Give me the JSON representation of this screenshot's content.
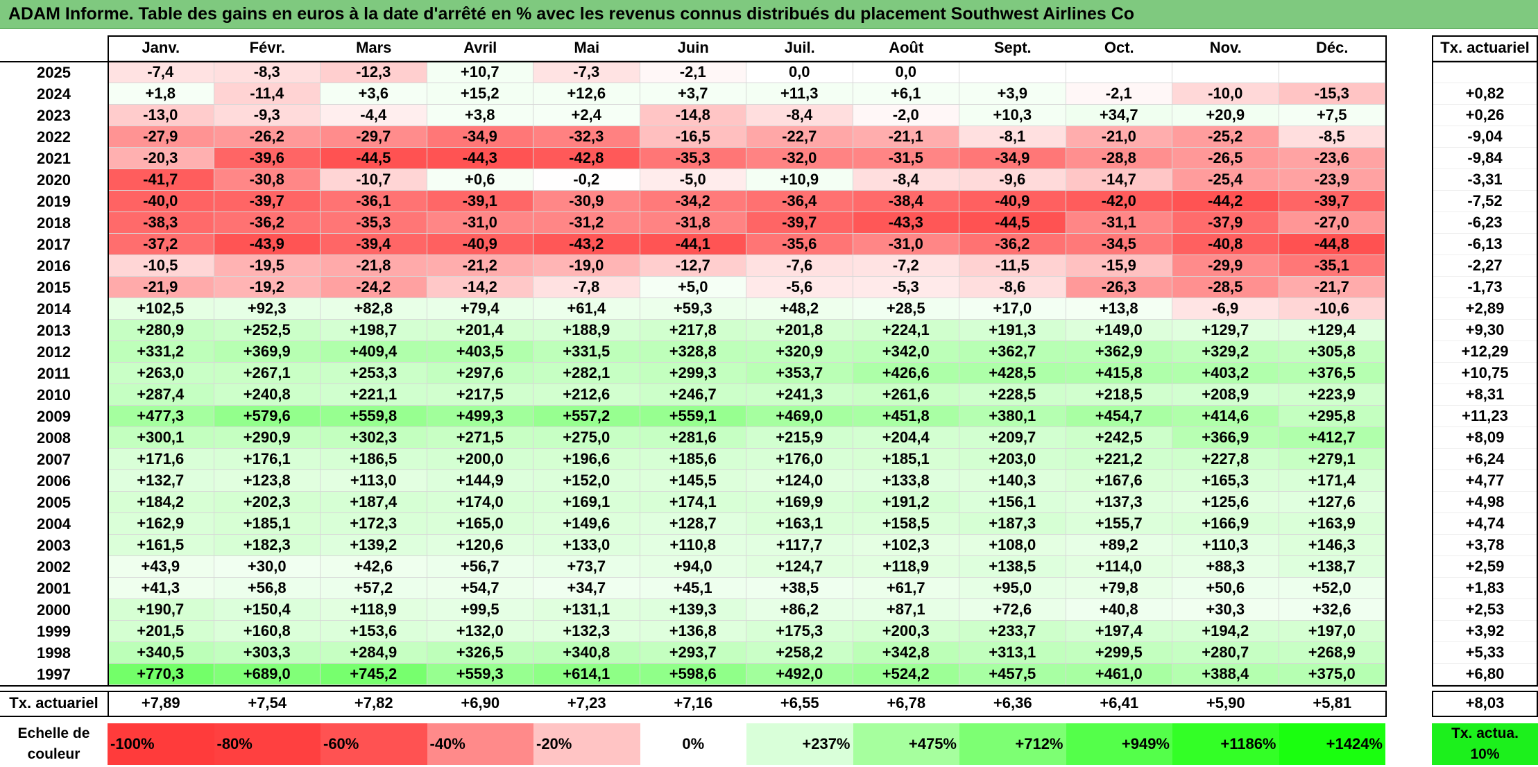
{
  "title": "ADAM Informe. Table des gains en euros à la date d'arrêté en % avec les revenus connus distribués du placement Southwest Airlines Co",
  "months": [
    "Janv.",
    "Févr.",
    "Mars",
    "Avril",
    "Mai",
    "Juin",
    "Juil.",
    "Août",
    "Sept.",
    "Oct.",
    "Nov.",
    "Déc."
  ],
  "rate_header": "Tx. actuariel",
  "rows": [
    {
      "year": "2025",
      "values": [
        "-7,4",
        "-8,3",
        "-12,3",
        "+10,7",
        "-7,3",
        "-2,1",
        "0,0",
        "0,0",
        "",
        "",
        "",
        ""
      ],
      "rate": ""
    },
    {
      "year": "2024",
      "values": [
        "+1,8",
        "-11,4",
        "+3,6",
        "+15,2",
        "+12,6",
        "+3,7",
        "+11,3",
        "+6,1",
        "+3,9",
        "-2,1",
        "-10,0",
        "-15,3"
      ],
      "rate": "+0,82"
    },
    {
      "year": "2023",
      "values": [
        "-13,0",
        "-9,3",
        "-4,4",
        "+3,8",
        "+2,4",
        "-14,8",
        "-8,4",
        "-2,0",
        "+10,3",
        "+34,7",
        "+20,9",
        "+7,5"
      ],
      "rate": "+0,26"
    },
    {
      "year": "2022",
      "values": [
        "-27,9",
        "-26,2",
        "-29,7",
        "-34,9",
        "-32,3",
        "-16,5",
        "-22,7",
        "-21,1",
        "-8,1",
        "-21,0",
        "-25,2",
        "-8,5"
      ],
      "rate": "-9,04"
    },
    {
      "year": "2021",
      "values": [
        "-20,3",
        "-39,6",
        "-44,5",
        "-44,3",
        "-42,8",
        "-35,3",
        "-32,0",
        "-31,5",
        "-34,9",
        "-28,8",
        "-26,5",
        "-23,6"
      ],
      "rate": "-9,84"
    },
    {
      "year": "2020",
      "values": [
        "-41,7",
        "-30,8",
        "-10,7",
        "+0,6",
        "-0,2",
        "-5,0",
        "+10,9",
        "-8,4",
        "-9,6",
        "-14,7",
        "-25,4",
        "-23,9"
      ],
      "rate": "-3,31"
    },
    {
      "year": "2019",
      "values": [
        "-40,0",
        "-39,7",
        "-36,1",
        "-39,1",
        "-30,9",
        "-34,2",
        "-36,4",
        "-38,4",
        "-40,9",
        "-42,0",
        "-44,2",
        "-39,7"
      ],
      "rate": "-7,52"
    },
    {
      "year": "2018",
      "values": [
        "-38,3",
        "-36,2",
        "-35,3",
        "-31,0",
        "-31,2",
        "-31,8",
        "-39,7",
        "-43,3",
        "-44,5",
        "-31,1",
        "-37,9",
        "-27,0"
      ],
      "rate": "-6,23"
    },
    {
      "year": "2017",
      "values": [
        "-37,2",
        "-43,9",
        "-39,4",
        "-40,9",
        "-43,2",
        "-44,1",
        "-35,6",
        "-31,0",
        "-36,2",
        "-34,5",
        "-40,8",
        "-44,8"
      ],
      "rate": "-6,13"
    },
    {
      "year": "2016",
      "values": [
        "-10,5",
        "-19,5",
        "-21,8",
        "-21,2",
        "-19,0",
        "-12,7",
        "-7,6",
        "-7,2",
        "-11,5",
        "-15,9",
        "-29,9",
        "-35,1"
      ],
      "rate": "-2,27"
    },
    {
      "year": "2015",
      "values": [
        "-21,9",
        "-19,2",
        "-24,2",
        "-14,2",
        "-7,8",
        "+5,0",
        "-5,6",
        "-5,3",
        "-8,6",
        "-26,3",
        "-28,5",
        "-21,7"
      ],
      "rate": "-1,73"
    },
    {
      "year": "2014",
      "values": [
        "+102,5",
        "+92,3",
        "+82,8",
        "+79,4",
        "+61,4",
        "+59,3",
        "+48,2",
        "+28,5",
        "+17,0",
        "+13,8",
        "-6,9",
        "-10,6"
      ],
      "rate": "+2,89"
    },
    {
      "year": "2013",
      "values": [
        "+280,9",
        "+252,5",
        "+198,7",
        "+201,4",
        "+188,9",
        "+217,8",
        "+201,8",
        "+224,1",
        "+191,3",
        "+149,0",
        "+129,7",
        "+129,4"
      ],
      "rate": "+9,30"
    },
    {
      "year": "2012",
      "values": [
        "+331,2",
        "+369,9",
        "+409,4",
        "+403,5",
        "+331,5",
        "+328,8",
        "+320,9",
        "+342,0",
        "+362,7",
        "+362,9",
        "+329,2",
        "+305,8"
      ],
      "rate": "+12,29"
    },
    {
      "year": "2011",
      "values": [
        "+263,0",
        "+267,1",
        "+253,3",
        "+297,6",
        "+282,1",
        "+299,3",
        "+353,7",
        "+426,6",
        "+428,5",
        "+415,8",
        "+403,2",
        "+376,5"
      ],
      "rate": "+10,75"
    },
    {
      "year": "2010",
      "values": [
        "+287,4",
        "+240,8",
        "+221,1",
        "+217,5",
        "+212,6",
        "+246,7",
        "+241,3",
        "+261,6",
        "+228,5",
        "+218,5",
        "+208,9",
        "+223,9"
      ],
      "rate": "+8,31"
    },
    {
      "year": "2009",
      "values": [
        "+477,3",
        "+579,6",
        "+559,8",
        "+499,3",
        "+557,2",
        "+559,1",
        "+469,0",
        "+451,8",
        "+380,1",
        "+454,7",
        "+414,6",
        "+295,8"
      ],
      "rate": "+11,23"
    },
    {
      "year": "2008",
      "values": [
        "+300,1",
        "+290,9",
        "+302,3",
        "+271,5",
        "+275,0",
        "+281,6",
        "+215,9",
        "+204,4",
        "+209,7",
        "+242,5",
        "+366,9",
        "+412,7"
      ],
      "rate": "+8,09"
    },
    {
      "year": "2007",
      "values": [
        "+171,6",
        "+176,1",
        "+186,5",
        "+200,0",
        "+196,6",
        "+185,6",
        "+176,0",
        "+185,1",
        "+203,0",
        "+221,2",
        "+227,8",
        "+279,1"
      ],
      "rate": "+6,24"
    },
    {
      "year": "2006",
      "values": [
        "+132,7",
        "+123,8",
        "+113,0",
        "+144,9",
        "+152,0",
        "+145,5",
        "+124,0",
        "+133,8",
        "+140,3",
        "+167,6",
        "+165,3",
        "+171,4"
      ],
      "rate": "+4,77"
    },
    {
      "year": "2005",
      "values": [
        "+184,2",
        "+202,3",
        "+187,4",
        "+174,0",
        "+169,1",
        "+174,1",
        "+169,9",
        "+191,2",
        "+156,1",
        "+137,3",
        "+125,6",
        "+127,6"
      ],
      "rate": "+4,98"
    },
    {
      "year": "2004",
      "values": [
        "+162,9",
        "+185,1",
        "+172,3",
        "+165,0",
        "+149,6",
        "+128,7",
        "+163,1",
        "+158,5",
        "+187,3",
        "+155,7",
        "+166,9",
        "+163,9"
      ],
      "rate": "+4,74"
    },
    {
      "year": "2003",
      "values": [
        "+161,5",
        "+182,3",
        "+139,2",
        "+120,6",
        "+133,0",
        "+110,8",
        "+117,7",
        "+102,3",
        "+108,0",
        "+89,2",
        "+110,3",
        "+146,3"
      ],
      "rate": "+3,78"
    },
    {
      "year": "2002",
      "values": [
        "+43,9",
        "+30,0",
        "+42,6",
        "+56,7",
        "+73,7",
        "+94,0",
        "+124,7",
        "+118,9",
        "+138,5",
        "+114,0",
        "+88,3",
        "+138,7"
      ],
      "rate": "+2,59"
    },
    {
      "year": "2001",
      "values": [
        "+41,3",
        "+56,8",
        "+57,2",
        "+54,7",
        "+34,7",
        "+45,1",
        "+38,5",
        "+61,7",
        "+95,0",
        "+79,8",
        "+50,6",
        "+52,0"
      ],
      "rate": "+1,83"
    },
    {
      "year": "2000",
      "values": [
        "+190,7",
        "+150,4",
        "+118,9",
        "+99,5",
        "+131,1",
        "+139,3",
        "+86,2",
        "+87,1",
        "+72,6",
        "+40,8",
        "+30,3",
        "+32,6"
      ],
      "rate": "+2,53"
    },
    {
      "year": "1999",
      "values": [
        "+201,5",
        "+160,8",
        "+153,6",
        "+132,0",
        "+132,3",
        "+136,8",
        "+175,3",
        "+200,3",
        "+233,7",
        "+197,4",
        "+194,2",
        "+197,0"
      ],
      "rate": "+3,92"
    },
    {
      "year": "1998",
      "values": [
        "+340,5",
        "+303,3",
        "+284,9",
        "+326,5",
        "+340,8",
        "+293,7",
        "+258,2",
        "+342,8",
        "+313,1",
        "+299,5",
        "+280,7",
        "+268,9"
      ],
      "rate": "+5,33"
    },
    {
      "year": "1997",
      "values": [
        "+770,3",
        "+689,0",
        "+745,2",
        "+559,3",
        "+614,1",
        "+598,6",
        "+492,0",
        "+524,2",
        "+457,5",
        "+461,0",
        "+388,4",
        "+375,0"
      ],
      "rate": "+6,80"
    }
  ],
  "summary": {
    "label": "Tx. actuariel",
    "values": [
      "+7,89",
      "+7,54",
      "+7,82",
      "+6,90",
      "+7,23",
      "+7,16",
      "+6,55",
      "+6,78",
      "+6,36",
      "+6,41",
      "+5,90",
      "+5,81"
    ],
    "total": "+8,03"
  },
  "scale": {
    "label": "Echelle de couleur",
    "steps": [
      {
        "label": "-100%",
        "color": "#ff3b3b"
      },
      {
        "label": "-80%",
        "color": "#ff4040"
      },
      {
        "label": "-60%",
        "color": "#ff5252"
      },
      {
        "label": "-40%",
        "color": "#ff8a8a"
      },
      {
        "label": "-20%",
        "color": "#ffc4c4"
      },
      {
        "label": "0%",
        "color": "#ffffff"
      },
      {
        "label": "+237%",
        "color": "#d9ffd9"
      },
      {
        "label": "+475%",
        "color": "#a6ff9e"
      },
      {
        "label": "+712%",
        "color": "#7dff73"
      },
      {
        "label": "+949%",
        "color": "#54ff4a"
      },
      {
        "label": "+1186%",
        "color": "#33ff26"
      },
      {
        "label": "+1424%",
        "color": "#1aff0f"
      }
    ],
    "rate_label": "Tx. actua. 10%",
    "rate_color": "#1cf01c"
  },
  "colors": {
    "title_bg": "#7fc97f",
    "negative": "#ff3b3b",
    "positive_base": "#d9ffd9",
    "positive_max": "#1aff0f"
  }
}
